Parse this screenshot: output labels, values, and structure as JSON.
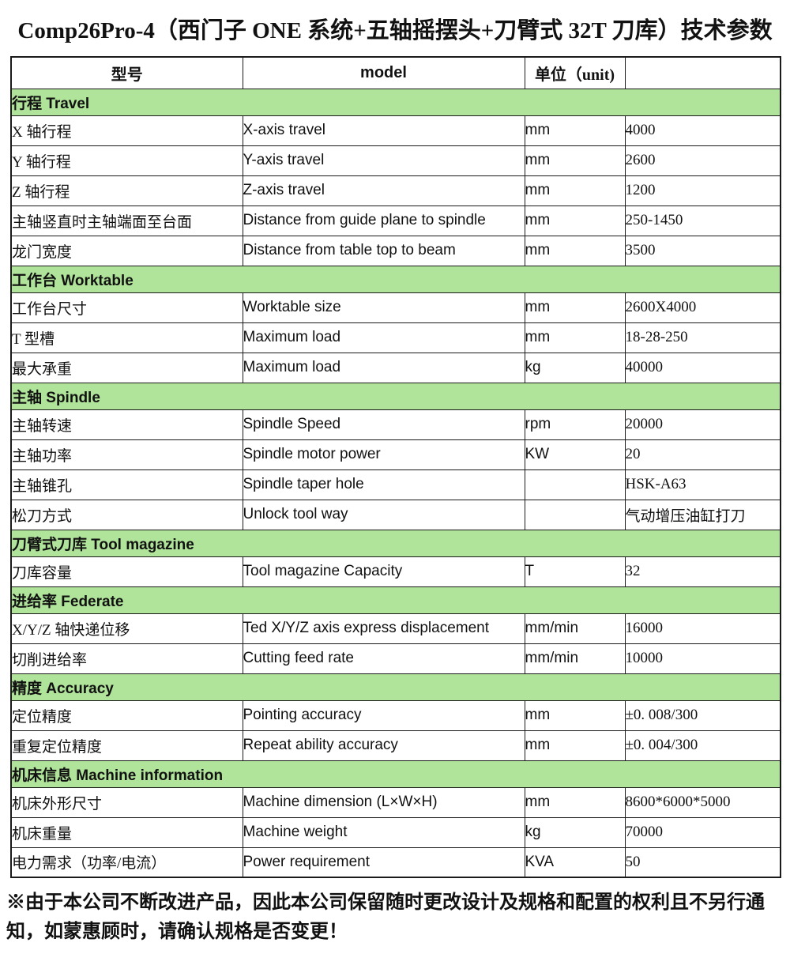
{
  "title": "Comp26Pro-4（西门子 ONE 系统+五轴摇摆头+刀臂式 32T 刀库）技术参数",
  "colors": {
    "section_bg": "#b0e49a",
    "border": "#1a1a1a",
    "page_bg": "#ffffff"
  },
  "table": {
    "headers": [
      "型号",
      "model",
      "单位（unit)",
      ""
    ],
    "sections": [
      {
        "label": "行程 Travel",
        "rows": [
          [
            "X 轴行程",
            "X-axis travel",
            "mm",
            "4000"
          ],
          [
            "Y 轴行程",
            "Y-axis travel",
            "mm",
            "2600"
          ],
          [
            "Z 轴行程",
            "Z-axis travel",
            "mm",
            "1200"
          ],
          [
            "主轴竖直时主轴端面至台面",
            "Distance from guide plane to spindle",
            "mm",
            "250-1450"
          ],
          [
            "龙门宽度",
            "Distance from table top to beam",
            "mm",
            "3500"
          ]
        ]
      },
      {
        "label": "工作台 Worktable",
        "rows": [
          [
            "工作台尺寸",
            "Worktable size",
            "mm",
            "2600X4000"
          ],
          [
            "T 型槽",
            "Maximum load",
            "mm",
            "18-28-250"
          ],
          [
            "最大承重",
            "Maximum load",
            "kg",
            "40000"
          ]
        ]
      },
      {
        "label": "主轴 Spindle",
        "rows": [
          [
            "主轴转速",
            "Spindle Speed",
            "rpm",
            "20000"
          ],
          [
            "主轴功率",
            "Spindle motor power",
            "KW",
            "20"
          ],
          [
            "主轴锥孔",
            "Spindle taper hole",
            "",
            "HSK-A63"
          ],
          [
            "松刀方式",
            "Unlock tool way",
            "",
            "气动增压油缸打刀"
          ]
        ]
      },
      {
        "label": "刀臂式刀库 Tool magazine",
        "rows": [
          [
            "刀库容量",
            "Tool magazine Capacity",
            "T",
            "32"
          ]
        ]
      },
      {
        "label": "进给率 Federate",
        "rows": [
          [
            "X/Y/Z 轴快递位移",
            "Ted X/Y/Z axis express displacement",
            "mm/min",
            "16000"
          ],
          [
            "切削进给率",
            "Cutting feed rate",
            "mm/min",
            "10000"
          ]
        ]
      },
      {
        "label": "精度 Accuracy",
        "rows": [
          [
            "定位精度",
            "Pointing accuracy",
            "mm",
            "±0. 008/300"
          ],
          [
            "重复定位精度",
            "Repeat ability accuracy",
            "mm",
            "±0. 004/300"
          ]
        ]
      },
      {
        "label": "机床信息 Machine information",
        "rows": [
          [
            "机床外形尺寸",
            "Machine dimension (L×W×H)",
            "mm",
            "8600*6000*5000"
          ],
          [
            "机床重量",
            "Machine weight",
            "kg",
            "70000"
          ],
          [
            "电力需求（功率/电流）",
            "Power requirement",
            "KVA",
            "50"
          ]
        ]
      }
    ]
  },
  "footer_note": "※由于本公司不断改进产品，因此本公司保留随时更改设计及规格和配置的权利且不另行通知，如蒙惠顾时，请确认规格是否变更！"
}
